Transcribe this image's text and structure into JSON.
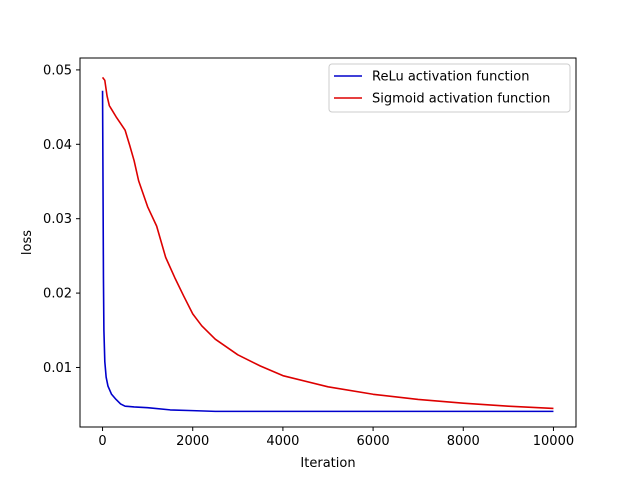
{
  "chart_data": {
    "type": "line",
    "title": "",
    "xlabel": "Iteration",
    "ylabel": "loss",
    "xlim": [
      -500,
      10500
    ],
    "ylim": [
      0.002,
      0.0516
    ],
    "xticks": [
      0,
      2000,
      4000,
      6000,
      8000,
      10000
    ],
    "yticks": [
      0.01,
      0.02,
      0.03,
      0.04,
      0.05
    ],
    "xtick_labels": [
      "0",
      "2000",
      "4000",
      "6000",
      "8000",
      "10000"
    ],
    "ytick_labels": [
      "0.01",
      "0.02",
      "0.03",
      "0.04",
      "0.05"
    ],
    "grid": false,
    "legend": "top-right",
    "series": [
      {
        "name": "ReLu activation function",
        "color": "#0000cc",
        "x": [
          0,
          10,
          20,
          30,
          50,
          80,
          120,
          200,
          300,
          400,
          500,
          700,
          1000,
          1500,
          2000,
          2500,
          3000,
          4000,
          5000,
          6000,
          8000,
          10000
        ],
        "y": [
          0.0472,
          0.035,
          0.022,
          0.015,
          0.0108,
          0.0087,
          0.0075,
          0.0064,
          0.0057,
          0.0051,
          0.0048,
          0.0047,
          0.0046,
          0.0043,
          0.0042,
          0.0041,
          0.0041,
          0.0041,
          0.0041,
          0.0041,
          0.0041,
          0.0041
        ]
      },
      {
        "name": "Sigmoid activation function",
        "color": "#dd0000",
        "x": [
          0,
          50,
          100,
          150,
          200,
          300,
          400,
          500,
          600,
          700,
          800,
          1000,
          1200,
          1400,
          1600,
          1800,
          2000,
          2200,
          2500,
          3000,
          3500,
          4000,
          5000,
          6000,
          7000,
          8000,
          9000,
          10000
        ],
        "y": [
          0.049,
          0.0486,
          0.0465,
          0.0452,
          0.0447,
          0.0437,
          0.0428,
          0.0419,
          0.0399,
          0.0378,
          0.0351,
          0.0316,
          0.029,
          0.0248,
          0.0221,
          0.0196,
          0.0172,
          0.0156,
          0.0138,
          0.0117,
          0.0102,
          0.0089,
          0.0074,
          0.0064,
          0.0057,
          0.0052,
          0.0048,
          0.0045
        ]
      }
    ]
  }
}
